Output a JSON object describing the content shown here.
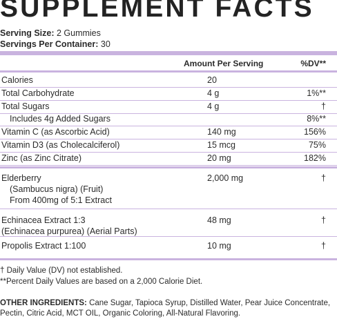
{
  "title": "SUPPLEMENT FACTS",
  "serving_size_label": "Serving Size:",
  "serving_size_value": "2 Gummies",
  "servings_label": "Servings Per Container:",
  "servings_value": "30",
  "header": {
    "amount": "Amount Per Serving",
    "dv": "%DV**"
  },
  "rows": [
    {
      "name": "Calories",
      "amount": "20",
      "dv": ""
    },
    {
      "name": "Total Carbohydrate",
      "amount": "4 g",
      "dv": "1%**"
    },
    {
      "name": "Total Sugars",
      "amount": "4 g",
      "dv": "†"
    },
    {
      "name": "Includes 4g Added Sugars",
      "amount": "",
      "dv": "8%**"
    },
    {
      "name": "Vitamin C (as Ascorbic Acid)",
      "amount": "140 mg",
      "dv": "156%"
    },
    {
      "name": "Vitamin D3 (as Cholecalciferol)",
      "amount": "15 mcg",
      "dv": "75%"
    },
    {
      "name": "Zinc (as Zinc Citrate)",
      "amount": "20 mg",
      "dv": "182%"
    }
  ],
  "herbals": [
    {
      "lines": [
        "Elderberry",
        "(Sambucus nigra) (Fruit)",
        "From 400mg of 5:1 Extract"
      ],
      "amount": "2,000 mg",
      "dv": "†"
    },
    {
      "lines": [
        "Echinacea Extract 1:3",
        "(Echinacea purpurea) (Aerial Parts)"
      ],
      "amount": "48 mg",
      "dv": "†"
    },
    {
      "lines": [
        "Propolis Extract 1:100"
      ],
      "amount": "10 mg",
      "dv": "†"
    }
  ],
  "footnotes": [
    "† Daily Value (DV) not established.",
    "**Percent Daily Values are based on a 2,000 Calorie Diet."
  ],
  "other_ingredients_label": "OTHER INGREDIENTS:",
  "other_ingredients_text": "Cane Sugar, Tapioca Syrup, Distilled Water, Pear Juice Concentrate, Pectin, Citric Acid, MCT OIL, Organic Coloring, All-Natural Flavoring."
}
